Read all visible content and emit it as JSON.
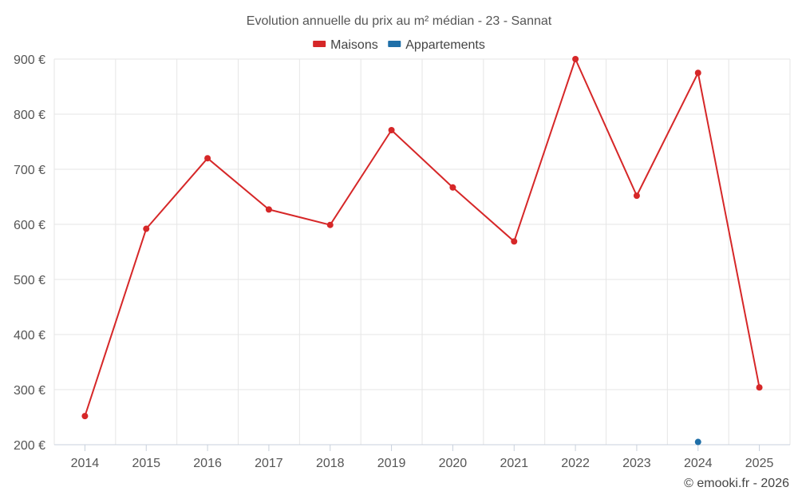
{
  "chart_data": {
    "type": "line",
    "title": "Evolution annuelle du prix au m² médian - 23 - Sannat",
    "categories": [
      "2014",
      "2015",
      "2016",
      "2017",
      "2018",
      "2019",
      "2020",
      "2021",
      "2022",
      "2023",
      "2024",
      "2025"
    ],
    "ylim": [
      200,
      900
    ],
    "yticks": [
      200,
      300,
      400,
      500,
      600,
      700,
      800,
      900
    ],
    "ytick_labels": [
      "200 €",
      "300 €",
      "400 €",
      "500 €",
      "600 €",
      "700 €",
      "800 €",
      "900 €"
    ],
    "xlabel": "",
    "ylabel": "",
    "grid": true,
    "legend_position": "top-center",
    "series": [
      {
        "name": "Maisons",
        "color": "#d62728",
        "values": [
          252,
          592,
          720,
          627,
          599,
          771,
          667,
          569,
          900,
          652,
          875,
          304
        ]
      },
      {
        "name": "Appartements",
        "color": "#1f6fa8",
        "values": [
          null,
          null,
          null,
          null,
          null,
          null,
          null,
          null,
          null,
          null,
          205,
          null
        ]
      }
    ]
  },
  "credit": "© emooki.fr - 2026"
}
